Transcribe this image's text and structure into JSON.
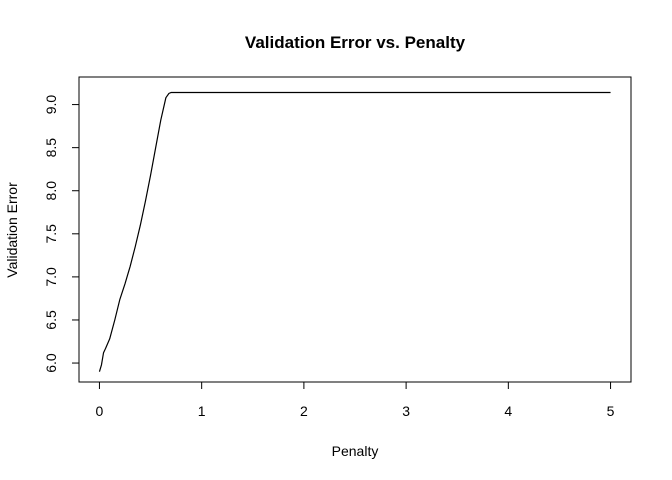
{
  "chart_data": {
    "type": "line",
    "title": "Validation Error vs. Penalty",
    "xlabel": "Penalty",
    "ylabel": "Validation Error",
    "xlim": [
      -0.2,
      5.2
    ],
    "ylim": [
      5.78,
      9.32
    ],
    "x_ticks": [
      0,
      1,
      2,
      3,
      4,
      5
    ],
    "x_tick_labels": [
      "0",
      "1",
      "2",
      "3",
      "4",
      "5"
    ],
    "y_ticks": [
      6.0,
      6.5,
      7.0,
      7.5,
      8.0,
      8.5,
      9.0
    ],
    "y_tick_labels": [
      "6.0",
      "6.5",
      "7.0",
      "7.5",
      "8.0",
      "8.5",
      "9.0"
    ],
    "grid": false,
    "legend": "none",
    "series": [
      {
        "x": [
          0.0,
          0.02,
          0.04,
          0.06,
          0.1,
          0.15,
          0.2,
          0.25,
          0.3,
          0.35,
          0.4,
          0.45,
          0.5,
          0.55,
          0.6,
          0.65,
          0.68,
          0.7,
          0.72,
          0.75,
          1.0,
          1.5,
          2.0,
          2.5,
          3.0,
          3.5,
          4.0,
          4.5,
          5.0
        ],
        "y": [
          5.9,
          5.98,
          6.12,
          6.17,
          6.28,
          6.5,
          6.74,
          6.92,
          7.12,
          7.35,
          7.6,
          7.88,
          8.18,
          8.5,
          8.82,
          9.08,
          9.13,
          9.14,
          9.14,
          9.14,
          9.14,
          9.14,
          9.14,
          9.14,
          9.14,
          9.14,
          9.14,
          9.14,
          9.14
        ]
      }
    ],
    "line_color": "#000000"
  }
}
